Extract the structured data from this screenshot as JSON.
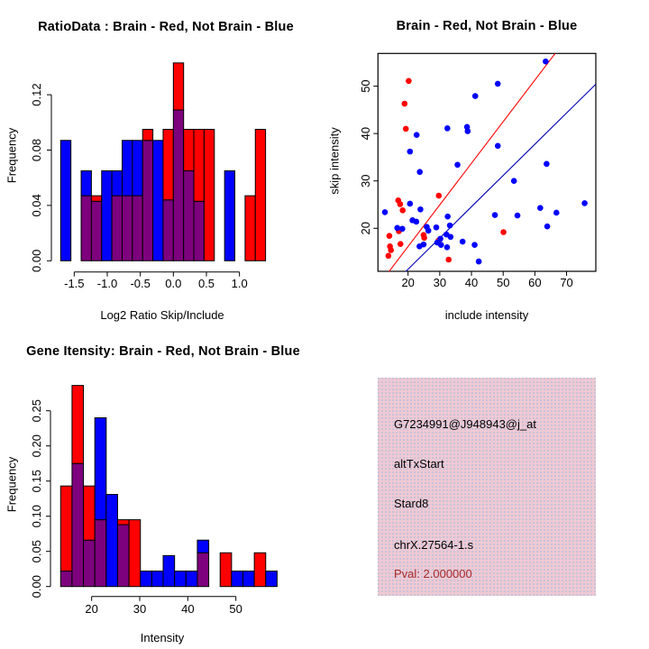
{
  "figure": {
    "colors": {
      "red": "#FF0000",
      "blue": "#0000FF",
      "overlap": "#7D017D",
      "line_red": "#FF0000",
      "line_blue": "#0000B4",
      "axis": "#000000",
      "info_bg": "#EFC9D4",
      "pval_text": "#A52A2A"
    }
  },
  "chart_data": [
    {
      "id": "ratio_hist",
      "type": "bar",
      "panel": "top-left",
      "title": "RatioData : Brain - Red, Not Brain - Blue",
      "xlabel": "Log2 Ratio Skip/Include",
      "ylabel": "Frequency",
      "x_ticks": [
        "-1.5",
        "-1.0",
        "-0.5",
        "0.0",
        "0.5",
        "1.0"
      ],
      "y_ticks": [
        "0.00",
        "0.04",
        "0.08",
        "0.12"
      ],
      "ylim": [
        0,
        0.145
      ],
      "bins": {
        "start": -1.705,
        "width": 0.155
      },
      "series": [
        {
          "name": "Brain",
          "color_key": "red",
          "values": [
            0,
            0,
            0.047,
            0.047,
            0,
            0.047,
            0.047,
            0.047,
            0.095,
            0,
            0.095,
            0.143,
            0.095,
            0.095,
            0.095,
            0,
            0,
            0,
            0.047,
            0.095
          ]
        },
        {
          "name": "Not Brain",
          "color_key": "blue",
          "values": [
            0.087,
            0,
            0.065,
            0.043,
            0.065,
            0.065,
            0.087,
            0.087,
            0.087,
            0.087,
            0.044,
            0.109,
            0.065,
            0.043,
            0,
            0,
            0.065,
            0,
            0,
            0
          ]
        }
      ],
      "overlap_note": "where red and blue histograms overlap the fill renders purple"
    },
    {
      "id": "scatter",
      "type": "scatter",
      "panel": "top-right",
      "title": "Brain - Red, Not Brain - Blue",
      "xlabel": "include intensity",
      "ylabel": "skip intensity",
      "x_ticks": [
        "20",
        "30",
        "40",
        "50",
        "60",
        "70"
      ],
      "y_ticks": [
        "20",
        "30",
        "40",
        "50"
      ],
      "xlim": [
        10.5,
        79.2
      ],
      "ylim": [
        10.9,
        56.9
      ],
      "series": [
        {
          "name": "Brain",
          "color_key": "red",
          "points": [
            [
              20.2,
              51.1
            ],
            [
              18.9,
              46.3
            ],
            [
              19.3,
              41.0
            ],
            [
              29.7,
              26.9
            ],
            [
              16.9,
              25.9
            ],
            [
              17.5,
              25.1
            ],
            [
              18.3,
              23.8
            ],
            [
              17.1,
              19.4
            ],
            [
              14.1,
              18.4
            ],
            [
              14.3,
              16.2
            ],
            [
              14.6,
              15.4
            ],
            [
              17.6,
              16.7
            ],
            [
              13.8,
              14.2
            ],
            [
              24.9,
              18.6
            ],
            [
              25.1,
              18.0
            ],
            [
              29.6,
              17.4
            ],
            [
              32.8,
              13.4
            ],
            [
              50.1,
              19.2
            ]
          ]
        },
        {
          "name": "Not Brain",
          "color_key": "blue",
          "points": [
            [
              63.4,
              55.2
            ],
            [
              48.3,
              50.5
            ],
            [
              41.2,
              47.9
            ],
            [
              38.6,
              41.4
            ],
            [
              38.8,
              40.5
            ],
            [
              32.4,
              41.1
            ],
            [
              22.7,
              39.7
            ],
            [
              20.6,
              36.2
            ],
            [
              48.3,
              37.4
            ],
            [
              35.6,
              33.4
            ],
            [
              63.7,
              33.6
            ],
            [
              23.7,
              31.9
            ],
            [
              53.4,
              30.0
            ],
            [
              12.7,
              23.4
            ],
            [
              20.6,
              25.2
            ],
            [
              23.9,
              24.0
            ],
            [
              21.4,
              21.7
            ],
            [
              22.6,
              21.4
            ],
            [
              16.6,
              20.1
            ],
            [
              18.2,
              19.9
            ],
            [
              25.9,
              20.3
            ],
            [
              26.4,
              19.5
            ],
            [
              23.6,
              16.2
            ],
            [
              24.9,
              16.6
            ],
            [
              28.9,
              20.2
            ],
            [
              29.2,
              17.0
            ],
            [
              30.2,
              17.8
            ],
            [
              30.4,
              16.5
            ],
            [
              32.5,
              22.5
            ],
            [
              33.2,
              20.6
            ],
            [
              32.1,
              18.7
            ],
            [
              33.4,
              18.2
            ],
            [
              32.3,
              16.0
            ],
            [
              37.2,
              17.2
            ],
            [
              41.0,
              16.5
            ],
            [
              42.3,
              13.0
            ],
            [
              47.4,
              22.8
            ],
            [
              54.5,
              22.7
            ],
            [
              61.7,
              24.3
            ],
            [
              66.8,
              23.3
            ],
            [
              63.9,
              20.4
            ],
            [
              75.7,
              25.3
            ]
          ]
        }
      ],
      "lines": [
        {
          "name": "brain-fit-line",
          "color_key": "line_red",
          "from": [
            14.0,
            10.9
          ],
          "to": [
            66.4,
            56.9
          ]
        },
        {
          "name": "notbrain-fit-line",
          "color_key": "line_blue",
          "from": [
            19.3,
            10.9
          ],
          "to": [
            79.2,
            50.4
          ]
        }
      ]
    },
    {
      "id": "gene_hist",
      "type": "bar",
      "panel": "bottom-left",
      "title": "Gene Itensity: Brain - Red, Not Brain - Blue",
      "xlabel": "Intensity",
      "ylabel": "Frequency",
      "x_ticks": [
        "20",
        "30",
        "40",
        "50"
      ],
      "y_ticks": [
        "0.00",
        "0.05",
        "0.10",
        "0.15",
        "0.20",
        "0.25"
      ],
      "ylim": [
        0,
        0.29
      ],
      "bins": {
        "start": 13.55,
        "width": 2.37
      },
      "series": [
        {
          "name": "Brain",
          "color_key": "red",
          "values": [
            0.143,
            0.286,
            0.143,
            0.095,
            0,
            0.095,
            0.095,
            0,
            0,
            0,
            0,
            0,
            0.048,
            0,
            0.048,
            0,
            0,
            0.048,
            0
          ]
        },
        {
          "name": "Not Brain",
          "color_key": "blue",
          "values": [
            0.022,
            0.175,
            0.066,
            0.24,
            0.131,
            0.088,
            0,
            0.022,
            0.022,
            0.044,
            0.022,
            0.022,
            0.066,
            0,
            0,
            0.022,
            0.022,
            0,
            0.022
          ]
        }
      ],
      "overlap_note": "where red and blue histograms overlap the fill renders purple"
    }
  ],
  "info_box": {
    "lines": [
      "G7234991@J948943@j_at",
      "altTxStart",
      "Stard8",
      "chrX.27564-1.s"
    ],
    "pval": "Pval: 2.000000"
  }
}
